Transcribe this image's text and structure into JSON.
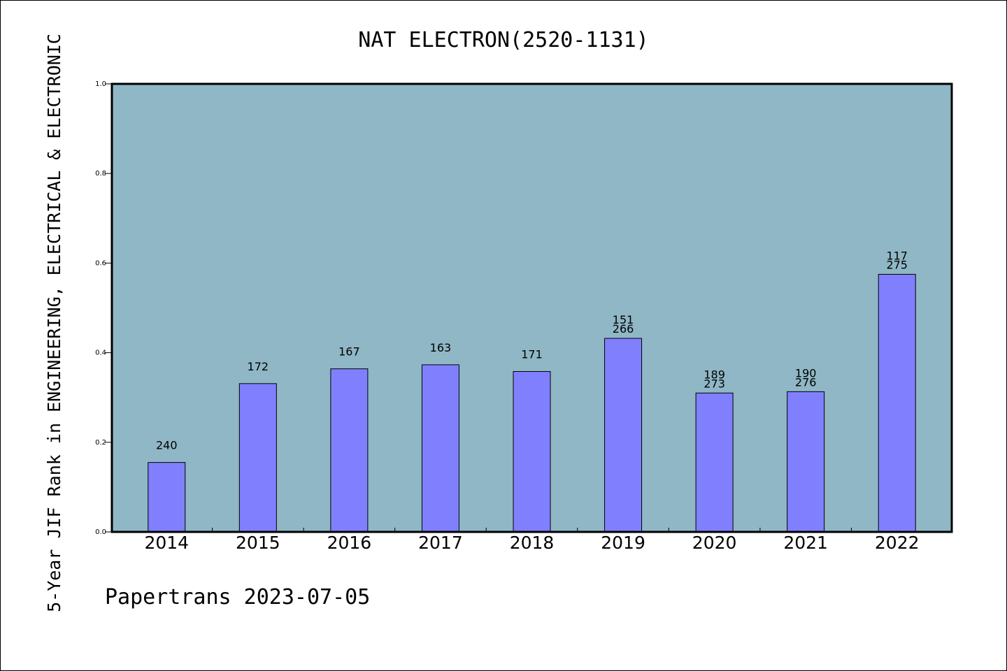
{
  "chart_data": {
    "type": "bar",
    "title": "NAT ELECTRON(2520-1131)",
    "xlabel": "",
    "ylabel": "5-Year JIF Rank in ENGINEERING, ELECTRICAL & ELECTRONIC",
    "ylim": [
      0,
      1.0
    ],
    "yticks": [
      "0.0",
      "0.2",
      "0.4",
      "0.6",
      "0.8",
      "1.0"
    ],
    "categories": [
      "2014",
      "2015",
      "2016",
      "2017",
      "2018",
      "2019",
      "2020",
      "2021",
      "2022"
    ],
    "values": [
      0.155,
      0.331,
      0.364,
      0.373,
      0.358,
      0.432,
      0.31,
      0.313,
      0.575
    ],
    "labels": [
      [
        "240"
      ],
      [
        "172"
      ],
      [
        "167"
      ],
      [
        "163"
      ],
      [
        "171"
      ],
      [
        "151",
        "266"
      ],
      [
        "189",
        "273"
      ],
      [
        "190",
        "276"
      ],
      [
        "117",
        "275"
      ]
    ],
    "grid": false,
    "colors": {
      "plot_bg": "#8fb7c5",
      "bar_fill": "#8080ff",
      "bar_stroke": "#000000"
    }
  },
  "footer": "Papertrans 2023-07-05"
}
